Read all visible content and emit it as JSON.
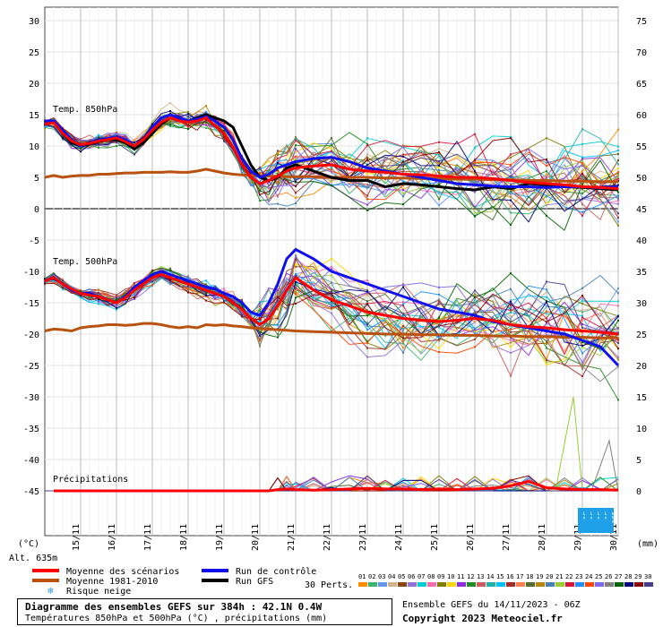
{
  "chart_data": {
    "type": "line",
    "title": "Diagramme des ensembles GEFS sur 384h : 42.1N 0.4W",
    "subtitle": "Températures 850hPa et 500hPa (°C) , précipitations (mm)",
    "source": "Ensemble GEFS du 14/11/2023 - 06Z",
    "copyright": "Copyright 2023 Meteociel.fr",
    "altitude": "Alt. 635m",
    "left_unit": "(°C)",
    "right_unit": "(mm)",
    "ylim_left": [
      -45,
      30
    ],
    "ylim_right": [
      0,
      75
    ],
    "left_ticks": [
      "30",
      "25",
      "20",
      "15",
      "10",
      "5",
      "0",
      "-5",
      "-10",
      "-15",
      "-20",
      "-25",
      "-30",
      "-35",
      "-40",
      "-45"
    ],
    "right_ticks": [
      "75",
      "70",
      "65",
      "60",
      "55",
      "50",
      "45",
      "40",
      "35",
      "30",
      "25",
      "20",
      "15",
      "10",
      "5",
      "0"
    ],
    "x_labels": [
      "15/11",
      "16/11",
      "17/11",
      "18/11",
      "19/11",
      "20/11",
      "21/11",
      "22/11",
      "23/11",
      "24/11",
      "25/11",
      "26/11",
      "27/11",
      "28/11",
      "29/11",
      "30/11"
    ],
    "panel_labels": [
      "Temp. 850hPa",
      "Temp. 500hPa",
      "Précipitations"
    ],
    "legend": {
      "mean": "Moyenne des scénarios",
      "climo": "Moyenne 1981-2010",
      "snow": "Risque neige",
      "control": "Run de contrôle",
      "gfs": "Run GFS",
      "perts": "30 Perts."
    },
    "member_ids": [
      "01",
      "02",
      "03",
      "04",
      "05",
      "06",
      "07",
      "08",
      "09",
      "10",
      "11",
      "12",
      "13",
      "14",
      "15",
      "16",
      "17",
      "18",
      "19",
      "20",
      "21",
      "22",
      "23",
      "24",
      "25",
      "26",
      "27",
      "28",
      "29",
      "30"
    ],
    "member_colors": [
      "#ff8c00",
      "#3cb371",
      "#6495ed",
      "#d2b48c",
      "#8b4513",
      "#9370db",
      "#00ced1",
      "#ff69b4",
      "#808000",
      "#ffd700",
      "#8a2be2",
      "#228b22",
      "#cd5c5c",
      "#20b2aa",
      "#00bfff",
      "#a52a2a",
      "#ff7f50",
      "#556b2f",
      "#b8860b",
      "#4682b4",
      "#9acd32",
      "#dc143c",
      "#1e90ff",
      "#ff4500",
      "#7b68ee",
      "#808080",
      "#006400",
      "#000080",
      "#8b0000",
      "#483d8b"
    ],
    "snow_risk": [
      "3%",
      "3%",
      "3%",
      "3%",
      "10%"
    ],
    "series_colors": {
      "mean": "#ff0000",
      "climo": "#b8520e",
      "control": "#1010ee",
      "gfs": "#000000"
    },
    "t850": {
      "x_days": [
        0,
        0.25,
        0.5,
        0.75,
        1,
        1.25,
        1.5,
        1.75,
        2,
        2.25,
        2.5,
        2.75,
        3,
        3.25,
        3.5,
        3.75,
        4,
        4.25,
        4.5,
        4.75,
        5,
        5.25,
        5.5,
        5.75,
        6,
        6.25,
        6.5,
        6.75,
        7,
        7.5,
        8,
        8.5,
        9,
        9.5,
        10,
        10.5,
        11,
        11.5,
        12,
        12.5,
        13,
        13.5,
        14,
        14.5,
        15,
        15.5,
        16
      ],
      "mean": [
        13.5,
        13.7,
        12,
        10.8,
        10.2,
        10.4,
        10.8,
        11,
        11.3,
        10.7,
        10,
        11,
        12.5,
        13.8,
        14.5,
        14,
        13.8,
        14,
        14.5,
        13.2,
        12,
        9.8,
        7,
        5,
        4,
        4.5,
        5.2,
        6,
        6.5,
        6.8,
        7,
        6.3,
        6,
        5.8,
        5.5,
        5.4,
        5.2,
        5,
        5,
        4.8,
        4.5,
        4.2,
        4,
        3.8,
        3.5,
        3.4,
        3.2
      ],
      "climo": [
        5,
        5.3,
        5,
        5.2,
        5.3,
        5.3,
        5.5,
        5.5,
        5.6,
        5.7,
        5.7,
        5.8,
        5.8,
        5.8,
        5.9,
        5.8,
        5.8,
        6,
        6.3,
        6,
        5.7,
        5.5,
        5.4,
        5.3,
        5.3,
        5.2,
        5.2,
        5.1,
        5.1,
        5.1,
        5,
        5,
        5,
        4.9,
        4.9,
        4.8,
        4.8,
        4.7,
        4.7,
        4.6,
        4.6,
        4.5,
        4.5,
        4.4,
        4.4,
        4.3,
        4.3
      ],
      "control": [
        14,
        14,
        12.5,
        11,
        10,
        10.5,
        11,
        11.2,
        11.5,
        11,
        10,
        11,
        13,
        14.5,
        15,
        14.5,
        14,
        14.3,
        14.7,
        14,
        13,
        11,
        8,
        6,
        5,
        5.5,
        6.5,
        7,
        7.5,
        8,
        8.2,
        7.5,
        6.5,
        6,
        5.5,
        5,
        4.5,
        4,
        3.8,
        3.6,
        3.5,
        3.5,
        3.4,
        3.5,
        3.5,
        3.3,
        3.5
      ],
      "gfs": [
        14,
        13.8,
        12,
        10.5,
        10,
        10.3,
        10.7,
        11,
        11,
        10.5,
        9.5,
        10.5,
        12,
        13.5,
        14.5,
        14,
        14,
        14.5,
        15,
        14.5,
        14,
        13,
        10,
        7,
        5,
        4.5,
        5,
        6.5,
        7,
        6,
        5,
        4.5,
        4.5,
        3.5,
        4,
        3.8,
        3.5,
        3.2,
        3,
        3.5,
        3.2,
        4,
        3.8,
        3.5,
        3.4,
        3.2,
        3
      ]
    },
    "t500": {
      "x_days": [
        0,
        0.25,
        0.5,
        0.75,
        1,
        1.25,
        1.5,
        1.75,
        2,
        2.25,
        2.5,
        2.75,
        3,
        3.25,
        3.5,
        3.75,
        4,
        4.25,
        4.5,
        4.75,
        5,
        5.25,
        5.5,
        5.75,
        6,
        6.25,
        6.5,
        6.75,
        7,
        7.5,
        8,
        8.5,
        9,
        9.5,
        10,
        10.5,
        11,
        11.5,
        12,
        12.5,
        13,
        13.5,
        14,
        14.5,
        15,
        15.5,
        16
      ],
      "mean": [
        -11.5,
        -11,
        -12,
        -12.8,
        -13.5,
        -13.8,
        -14,
        -14.5,
        -15,
        -14.2,
        -13,
        -12,
        -11,
        -10.5,
        -11,
        -11.5,
        -12,
        -12.5,
        -13,
        -13.5,
        -14,
        -15,
        -16,
        -17.5,
        -18.5,
        -17.5,
        -15.5,
        -13,
        -11,
        -13,
        -14.5,
        -15.5,
        -16.5,
        -17,
        -17.5,
        -17.8,
        -18,
        -17.8,
        -17.5,
        -17.8,
        -18.5,
        -18.8,
        -19,
        -19.3,
        -19.5,
        -19.7,
        -20
      ],
      "climo": [
        -19.5,
        -19.2,
        -19.3,
        -19.5,
        -19,
        -18.8,
        -18.7,
        -18.5,
        -18.5,
        -18.6,
        -18.5,
        -18.3,
        -18.3,
        -18.5,
        -18.8,
        -19,
        -18.8,
        -19,
        -18.5,
        -18.6,
        -18.5,
        -18.7,
        -18.8,
        -19,
        -19.1,
        -19.2,
        -19.3,
        -19.4,
        -19.5,
        -19.6,
        -19.7,
        -19.8,
        -19.9,
        -20,
        -20,
        -20.1,
        -20.1,
        -20.2,
        -20.2,
        -20.3,
        -20.3,
        -20.4,
        -20.4,
        -20.5,
        -20.5,
        -20.6,
        -20.6
      ],
      "control": [
        -11.5,
        -11,
        -12,
        -13,
        -13.5,
        -13.5,
        -14,
        -14.5,
        -15,
        -14,
        -12.5,
        -11.5,
        -10.5,
        -10,
        -10.5,
        -11,
        -11.5,
        -12,
        -12.5,
        -12.8,
        -13.5,
        -14,
        -15,
        -16.5,
        -17,
        -15,
        -12,
        -8,
        -6.5,
        -8,
        -10,
        -11,
        -12,
        -13,
        -14,
        -15,
        -16,
        -16.5,
        -17,
        -18,
        -18.5,
        -19,
        -19.5,
        -20,
        -21,
        -22,
        -25
      ]
    },
    "precip": {
      "mean": [
        0,
        0,
        0,
        0,
        0,
        0,
        0,
        0,
        0,
        0,
        0,
        0,
        0,
        0,
        0,
        0,
        0,
        0,
        0,
        0,
        0,
        0,
        0,
        0,
        0,
        0,
        0.2,
        0.3,
        0.2,
        0.1,
        0.2,
        0.3,
        0.4,
        0.3,
        0.3,
        0.2,
        0.3,
        0.2,
        0.3,
        0.4,
        0.8,
        1.5,
        0.5,
        0.3,
        0.2,
        0.2,
        0.1
      ],
      "spike_high": [
        15,
        2.5
      ]
    }
  }
}
